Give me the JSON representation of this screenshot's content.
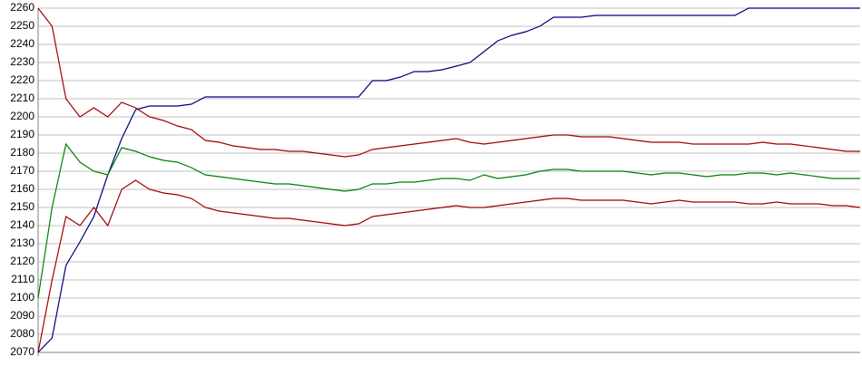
{
  "chart_data": {
    "type": "line",
    "categories": [
      null,
      null,
      null,
      null,
      null,
      null,
      null,
      null,
      null,
      null,
      null,
      null,
      null,
      null,
      null,
      null,
      null,
      null,
      null,
      null,
      null,
      null,
      null,
      null,
      null,
      null,
      null,
      null,
      null,
      null,
      null,
      null,
      null,
      null,
      null,
      null,
      null,
      null,
      null,
      null,
      null,
      null,
      null,
      null,
      null,
      null,
      null,
      null,
      null,
      null,
      null,
      null,
      null,
      null,
      null,
      null,
      null,
      null,
      null,
      null
    ],
    "series": [
      {
        "color": "#000080",
        "values": [
          2070,
          2078,
          2118,
          2131,
          2145,
          2168,
          2188,
          2204,
          2206,
          2206,
          2206,
          2207,
          2211,
          2211,
          2211,
          2211,
          2211,
          2211,
          2211,
          2211,
          2211,
          2211,
          2211,
          2211,
          2220,
          2220,
          2222,
          2225,
          2225,
          2226,
          2228,
          2230,
          2236,
          2242,
          2245,
          2247,
          2250,
          2255,
          2255,
          2255,
          2256,
          2256,
          2256,
          2256,
          2256,
          2256,
          2256,
          2256,
          2256,
          2256,
          2256,
          2260,
          2260,
          2260,
          2260,
          2260,
          2260,
          2260,
          2260,
          2260
        ]
      },
      {
        "color": "#008000",
        "values": [
          2100,
          2150,
          2185,
          2175,
          2170,
          2168,
          2183,
          2181,
          2178,
          2176,
          2175,
          2172,
          2168,
          2167,
          2166,
          2165,
          2164,
          2163,
          2163,
          2162,
          2161,
          2160,
          2159,
          2160,
          2163,
          2163,
          2164,
          2164,
          2165,
          2166,
          2166,
          2165,
          2168,
          2166,
          2167,
          2168,
          2170,
          2171,
          2171,
          2170,
          2170,
          2170,
          2170,
          2169,
          2168,
          2169,
          2169,
          2168,
          2167,
          2168,
          2168,
          2169,
          2169,
          2168,
          2169,
          2168,
          2167,
          2166,
          2166,
          2166
        ]
      },
      {
        "color": "#a00000",
        "values": [
          2260,
          2250,
          2210,
          2200,
          2205,
          2200,
          2208,
          2205,
          2200,
          2198,
          2195,
          2193,
          2187,
          2186,
          2184,
          2183,
          2182,
          2182,
          2181,
          2181,
          2180,
          2179,
          2178,
          2179,
          2182,
          2183,
          2184,
          2185,
          2186,
          2187,
          2188,
          2186,
          2185,
          2186,
          2187,
          2188,
          2189,
          2190,
          2190,
          2189,
          2189,
          2189,
          2188,
          2187,
          2186,
          2186,
          2186,
          2185,
          2185,
          2185,
          2185,
          2185,
          2186,
          2185,
          2185,
          2184,
          2183,
          2182,
          2181,
          2181
        ]
      },
      {
        "color": "#a00000",
        "values": [
          2070,
          2110,
          2145,
          2140,
          2150,
          2140,
          2160,
          2165,
          2160,
          2158,
          2157,
          2155,
          2150,
          2148,
          2147,
          2146,
          2145,
          2144,
          2144,
          2143,
          2142,
          2141,
          2140,
          2141,
          2145,
          2146,
          2147,
          2148,
          2149,
          2150,
          2151,
          2150,
          2150,
          2151,
          2152,
          2153,
          2154,
          2155,
          2155,
          2154,
          2154,
          2154,
          2154,
          2153,
          2152,
          2153,
          2154,
          2153,
          2153,
          2153,
          2153,
          2152,
          2152,
          2153,
          2152,
          2152,
          2152,
          2151,
          2151,
          2150
        ]
      }
    ],
    "ylim": [
      2070,
      2260
    ],
    "yticks": [
      2070,
      2080,
      2090,
      2100,
      2110,
      2120,
      2130,
      2140,
      2150,
      2160,
      2170,
      2180,
      2190,
      2200,
      2210,
      2220,
      2230,
      2240,
      2250,
      2260
    ],
    "grid": true
  }
}
